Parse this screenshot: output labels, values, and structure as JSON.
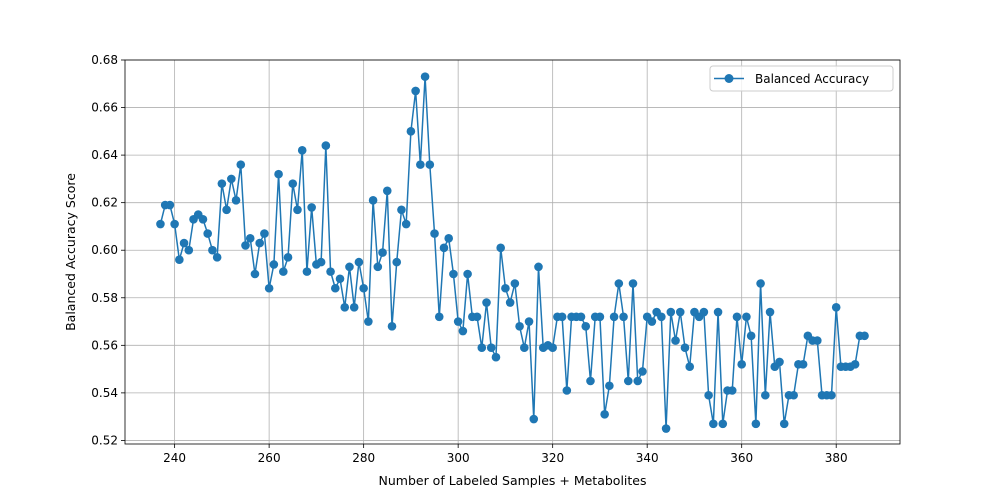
{
  "chart_data": {
    "type": "line",
    "xlabel": "Number of Labeled Samples + Metabolites",
    "ylabel": "Balanced Accuracy Score",
    "xlim": [
      229.5,
      393.5
    ],
    "ylim": [
      0.5185,
      0.68
    ],
    "xticks": [
      240,
      260,
      280,
      300,
      320,
      340,
      360,
      380
    ],
    "yticks": [
      0.52,
      0.54,
      0.56,
      0.58,
      0.6,
      0.62,
      0.64,
      0.66,
      0.68
    ],
    "ytick_labels": [
      "0.52",
      "0.54",
      "0.56",
      "0.58",
      "0.60",
      "0.62",
      "0.64",
      "0.66",
      "0.68"
    ],
    "grid": true,
    "legend_position": "upper right",
    "series": [
      {
        "name": "Balanced Accuracy",
        "color": "#1f77b4",
        "marker": "circle",
        "x": [
          237,
          238,
          239,
          240,
          241,
          242,
          243,
          244,
          245,
          246,
          247,
          248,
          249,
          250,
          251,
          252,
          253,
          254,
          255,
          256,
          257,
          258,
          259,
          260,
          261,
          262,
          263,
          264,
          265,
          266,
          267,
          268,
          269,
          270,
          271,
          272,
          273,
          274,
          275,
          276,
          277,
          278,
          279,
          280,
          281,
          282,
          283,
          284,
          285,
          286,
          287,
          288,
          289,
          290,
          291,
          292,
          293,
          294,
          295,
          296,
          297,
          298,
          299,
          300,
          301,
          302,
          303,
          304,
          305,
          306,
          307,
          308,
          309,
          310,
          311,
          312,
          313,
          314,
          315,
          316,
          317,
          318,
          319,
          320,
          321,
          322,
          323,
          324,
          325,
          326,
          327,
          328,
          329,
          330,
          331,
          332,
          333,
          334,
          335,
          336,
          337,
          338,
          339,
          340,
          341,
          342,
          343,
          344,
          345,
          346,
          347,
          348,
          349,
          350,
          351,
          352,
          353,
          354,
          355,
          356,
          357,
          358,
          359,
          360,
          361,
          362,
          363,
          364,
          365,
          366,
          367,
          368,
          369,
          370,
          371,
          372,
          373,
          374,
          375,
          376,
          377,
          378,
          379,
          380,
          381,
          382,
          383,
          384,
          385,
          386
        ],
        "y": [
          0.611,
          0.619,
          0.619,
          0.611,
          0.596,
          0.603,
          0.6,
          0.613,
          0.615,
          0.613,
          0.607,
          0.6,
          0.597,
          0.628,
          0.617,
          0.63,
          0.621,
          0.636,
          0.602,
          0.605,
          0.59,
          0.603,
          0.607,
          0.584,
          0.594,
          0.632,
          0.591,
          0.597,
          0.628,
          0.617,
          0.642,
          0.591,
          0.618,
          0.594,
          0.595,
          0.644,
          0.591,
          0.584,
          0.588,
          0.576,
          0.593,
          0.576,
          0.595,
          0.584,
          0.57,
          0.621,
          0.593,
          0.599,
          0.625,
          0.568,
          0.595,
          0.617,
          0.611,
          0.65,
          0.667,
          0.636,
          0.673,
          0.636,
          0.607,
          0.572,
          0.601,
          0.605,
          0.59,
          0.57,
          0.566,
          0.59,
          0.572,
          0.572,
          0.559,
          0.578,
          0.559,
          0.555,
          0.601,
          0.584,
          0.578,
          0.586,
          0.568,
          0.559,
          0.57,
          0.529,
          0.593,
          0.559,
          0.56,
          0.559,
          0.572,
          0.572,
          0.541,
          0.572,
          0.572,
          0.572,
          0.568,
          0.545,
          0.572,
          0.572,
          0.531,
          0.543,
          0.572,
          0.586,
          0.572,
          0.545,
          0.586,
          0.545,
          0.549,
          0.572,
          0.57,
          0.574,
          0.572,
          0.525,
          0.574,
          0.562,
          0.574,
          0.559,
          0.551,
          0.574,
          0.572,
          0.574,
          0.539,
          0.527,
          0.574,
          0.527,
          0.541,
          0.541,
          0.572,
          0.552,
          0.572,
          0.564,
          0.527,
          0.586,
          0.539,
          0.574,
          0.551,
          0.553,
          0.527,
          0.539,
          0.539,
          0.552,
          0.552,
          0.564,
          0.562,
          0.562,
          0.539,
          0.539,
          0.539,
          0.576,
          0.551,
          0.551,
          0.551,
          0.552,
          0.564,
          0.564
        ]
      }
    ]
  }
}
